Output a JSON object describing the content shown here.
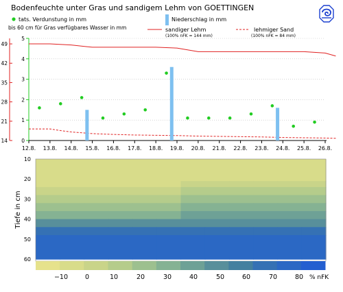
{
  "header": {
    "title": "Bodenfeuchte unter Gras und sandigem Lehm von GOETTINGEN",
    "subtitle": "bis 60 cm für Gras verfügbares Wasser in mm"
  },
  "legend": {
    "evaporation_label": "tats. Verdunstung in mm",
    "precip_label": "Niederschlag in mm",
    "sandy_loam_label": "sandiger Lehm",
    "sandy_loam_sub": "(100% nFK = 144 mm)",
    "loamy_sand_label": "lehmiger Sand",
    "loamy_sand_sub": "(100% nFK = 84 mm)"
  },
  "colors": {
    "sandy_loam": "#e02020",
    "loamy_sand": "#e02020",
    "evaporation": "#22cc22",
    "precipitation": "#7ec0f0",
    "left_axis": "#e02020",
    "right_axis": "#22cc22",
    "logo": "#1a3fcf"
  },
  "chart_data": [
    {
      "type": "line",
      "categories": [
        "12.8.",
        "13.8.",
        "14.8.",
        "15.8.",
        "16.8.",
        "17.8.",
        "18.8.",
        "19.8.",
        "20.8.",
        "21.8.",
        "22.8.",
        "23.8.",
        "24.8.",
        "25.8.",
        "26.8."
      ],
      "left_axis": {
        "ticks": [
          14,
          21,
          28,
          35,
          42,
          49
        ],
        "ylim": [
          14,
          51
        ]
      },
      "right_axis": {
        "ticks": [
          0,
          1,
          2,
          3,
          4,
          5
        ],
        "ylim": [
          0,
          5
        ]
      },
      "series": [
        {
          "name": "sandiger Lehm",
          "axis": "left",
          "style": "solid",
          "x": [
            0,
            1,
            2,
            3,
            4,
            5,
            6,
            7,
            8,
            9,
            10,
            11,
            12,
            13,
            14,
            14.5
          ],
          "values": [
            49,
            49,
            48.6,
            47.8,
            47.8,
            47.8,
            47.8,
            47.5,
            46.2,
            46.2,
            46.2,
            46.2,
            46.2,
            46.2,
            45.7,
            44.6
          ]
        },
        {
          "name": "lehmiger Sand",
          "axis": "left",
          "style": "dashed",
          "x": [
            0,
            1,
            1.5,
            2,
            3,
            4,
            5,
            6,
            7,
            8,
            9,
            10,
            11,
            12,
            13,
            14,
            14.5
          ],
          "values": [
            18.2,
            18.2,
            17.6,
            17.1,
            16.5,
            16.2,
            16.0,
            15.9,
            15.8,
            15.6,
            15.5,
            15.4,
            15.3,
            15.1,
            15.0,
            14.9,
            14.8
          ]
        },
        {
          "name": "tats. Verdunstung in mm",
          "axis": "right",
          "style": "points",
          "x": [
            0.5,
            1.5,
            2.5,
            3.5,
            4.5,
            5.5,
            6.5,
            7.5,
            8.5,
            9.5,
            10.5,
            11.5,
            12.5,
            13.5
          ],
          "values": [
            1.6,
            1.8,
            2.1,
            1.1,
            1.3,
            1.5,
            3.3,
            1.1,
            1.1,
            1.1,
            1.3,
            1.7,
            0.7,
            0.9
          ]
        },
        {
          "name": "Niederschlag in mm",
          "axis": "right",
          "style": "bars",
          "x": [
            2.75,
            6.75,
            11.75
          ],
          "values": [
            1.5,
            3.6,
            1.6
          ]
        }
      ]
    },
    {
      "type": "heatmap",
      "ylabel": "Tiefe in cm",
      "y_ticks": [
        10,
        20,
        30,
        40,
        50,
        60
      ],
      "colorbar": {
        "labels": [
          "−10",
          "0",
          "10",
          "20",
          "30",
          "40",
          "50",
          "60",
          "70",
          "80"
        ],
        "unit": "% nFK",
        "colors": [
          "#e6e28c",
          "#d8dc8a",
          "#c9d489",
          "#b5cc8b",
          "#9dc08f",
          "#85b293",
          "#6ea196",
          "#588f9b",
          "#44809f",
          "#3571b4",
          "#2b68c4",
          "#245fd0"
        ]
      },
      "bands": [
        {
          "depth_start": 10,
          "depth_end": 15,
          "percent": [
            -10,
            -10
          ]
        },
        {
          "depth_start": 15,
          "depth_end": 21,
          "percent": [
            -10,
            -5
          ]
        },
        {
          "depth_start": 21,
          "depth_end": 24,
          "percent": [
            -5,
            5
          ]
        },
        {
          "depth_start": 24,
          "depth_end": 28,
          "percent": [
            5,
            15
          ]
        },
        {
          "depth_start": 28,
          "depth_end": 32,
          "percent": [
            15,
            25
          ]
        },
        {
          "depth_start": 32,
          "depth_end": 36,
          "percent": [
            25,
            35
          ]
        },
        {
          "depth_start": 36,
          "depth_end": 40,
          "percent": [
            35,
            45
          ]
        },
        {
          "depth_start": 40,
          "depth_end": 44,
          "percent": [
            50,
            60
          ]
        },
        {
          "depth_start": 44,
          "depth_end": 48,
          "percent": [
            70,
            80
          ]
        },
        {
          "depth_start": 48,
          "depth_end": 60,
          "percent": [
            85,
            85
          ]
        }
      ]
    }
  ]
}
